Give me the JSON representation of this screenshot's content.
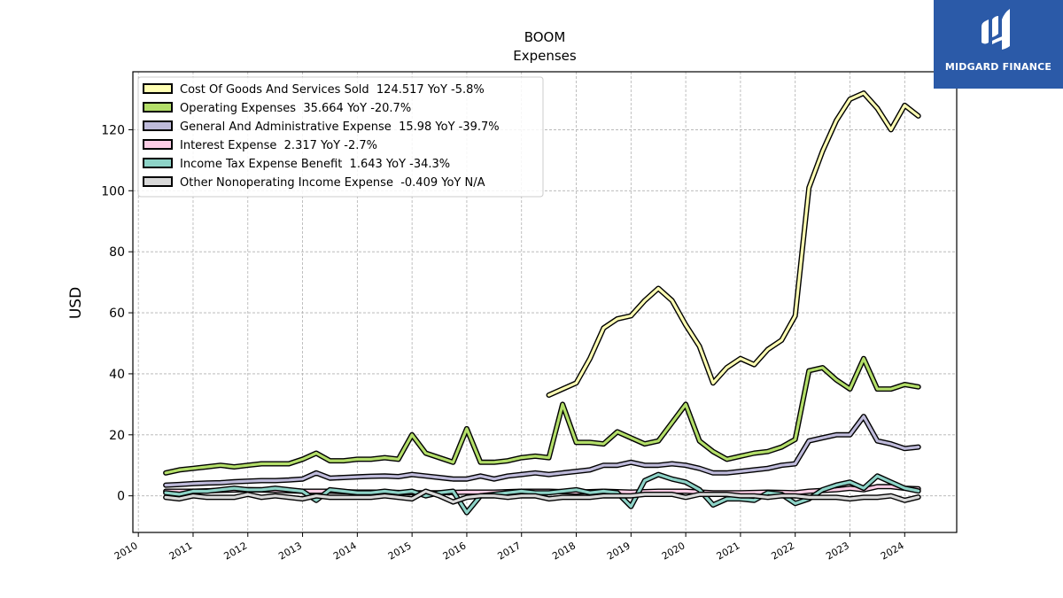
{
  "brand": {
    "name": "MIDGARD FINANCE",
    "bg_color": "#2b5aa8"
  },
  "chart_data": {
    "type": "line",
    "title": "BOOM",
    "subtitle": "Expenses",
    "xlabel": "",
    "ylabel": "USD",
    "xlim": [
      2009.9,
      2024.95
    ],
    "ylim": [
      -12,
      139
    ],
    "yticks": [
      0,
      20,
      40,
      60,
      80,
      100,
      120
    ],
    "xticks": [
      "2010",
      "2011",
      "2012",
      "2013",
      "2014",
      "2015",
      "2016",
      "2017",
      "2018",
      "2019",
      "2020",
      "2021",
      "2022",
      "2023",
      "2024"
    ],
    "grid": true,
    "legend_position": "top-left",
    "series": [
      {
        "name": "Cost Of Goods And Services Sold  124.517 YoY -5.8%",
        "color": "#ffffb3",
        "points": [
          [
            2017.5,
            33
          ],
          [
            2017.75,
            35
          ],
          [
            2018.0,
            37
          ],
          [
            2018.25,
            45
          ],
          [
            2018.5,
            55
          ],
          [
            2018.75,
            58
          ],
          [
            2019.0,
            59
          ],
          [
            2019.25,
            64
          ],
          [
            2019.5,
            68
          ],
          [
            2019.75,
            64
          ],
          [
            2020.0,
            56
          ],
          [
            2020.25,
            49
          ],
          [
            2020.5,
            37
          ],
          [
            2020.75,
            42
          ],
          [
            2021.0,
            45
          ],
          [
            2021.25,
            43
          ],
          [
            2021.5,
            48
          ],
          [
            2021.75,
            51
          ],
          [
            2022.0,
            59
          ],
          [
            2022.25,
            101
          ],
          [
            2022.5,
            113
          ],
          [
            2022.75,
            123
          ],
          [
            2023.0,
            130
          ],
          [
            2023.25,
            132
          ],
          [
            2023.5,
            127
          ],
          [
            2023.75,
            120
          ],
          [
            2024.0,
            128
          ],
          [
            2024.25,
            124.5
          ]
        ]
      },
      {
        "name": "Operating Expenses  35.664 YoY -20.7%",
        "color": "#b3de69",
        "points": [
          [
            2010.5,
            7.5
          ],
          [
            2010.75,
            8.5
          ],
          [
            2011.0,
            9
          ],
          [
            2011.25,
            9.5
          ],
          [
            2011.5,
            10
          ],
          [
            2011.75,
            9.5
          ],
          [
            2012.0,
            10
          ],
          [
            2012.25,
            10.5
          ],
          [
            2012.5,
            10.5
          ],
          [
            2012.75,
            10.5
          ],
          [
            2013.0,
            12
          ],
          [
            2013.25,
            14
          ],
          [
            2013.5,
            11.5
          ],
          [
            2013.75,
            11.5
          ],
          [
            2014.0,
            12
          ],
          [
            2014.25,
            12
          ],
          [
            2014.5,
            12.5
          ],
          [
            2014.75,
            12
          ],
          [
            2015.0,
            20
          ],
          [
            2015.25,
            14
          ],
          [
            2015.5,
            12.5
          ],
          [
            2015.75,
            11
          ],
          [
            2016.0,
            22
          ],
          [
            2016.25,
            11
          ],
          [
            2016.5,
            11
          ],
          [
            2016.75,
            11.5
          ],
          [
            2017.0,
            12.5
          ],
          [
            2017.25,
            13
          ],
          [
            2017.5,
            12.5
          ],
          [
            2017.75,
            30
          ],
          [
            2018.0,
            17.5
          ],
          [
            2018.25,
            17.5
          ],
          [
            2018.5,
            17
          ],
          [
            2018.75,
            21
          ],
          [
            2019.0,
            19
          ],
          [
            2019.25,
            17
          ],
          [
            2019.5,
            18
          ],
          [
            2019.75,
            24
          ],
          [
            2020.0,
            30
          ],
          [
            2020.25,
            18
          ],
          [
            2020.5,
            14.5
          ],
          [
            2020.75,
            12
          ],
          [
            2021.0,
            13
          ],
          [
            2021.25,
            14
          ],
          [
            2021.5,
            14.5
          ],
          [
            2021.75,
            16
          ],
          [
            2022.0,
            18.5
          ],
          [
            2022.25,
            41
          ],
          [
            2022.5,
            42
          ],
          [
            2022.75,
            38
          ],
          [
            2023.0,
            35
          ],
          [
            2023.25,
            45
          ],
          [
            2023.5,
            35
          ],
          [
            2023.75,
            35
          ],
          [
            2024.0,
            36.5
          ],
          [
            2024.25,
            35.7
          ]
        ]
      },
      {
        "name": "General And Administrative Expense  15.98 YoY -39.7%",
        "color": "#bebada",
        "points": [
          [
            2010.5,
            3.5
          ],
          [
            2010.75,
            3.7
          ],
          [
            2011.0,
            4
          ],
          [
            2011.25,
            4.2
          ],
          [
            2011.5,
            4.3
          ],
          [
            2011.75,
            4.6
          ],
          [
            2012.0,
            4.8
          ],
          [
            2012.25,
            5
          ],
          [
            2012.5,
            5
          ],
          [
            2012.75,
            5.2
          ],
          [
            2013.0,
            5.5
          ],
          [
            2013.25,
            7.5
          ],
          [
            2013.5,
            5.8
          ],
          [
            2013.75,
            6
          ],
          [
            2014.0,
            6.2
          ],
          [
            2014.25,
            6.4
          ],
          [
            2014.5,
            6.5
          ],
          [
            2014.75,
            6.3
          ],
          [
            2015.0,
            7
          ],
          [
            2015.25,
            6.5
          ],
          [
            2015.5,
            6
          ],
          [
            2015.75,
            5.5
          ],
          [
            2016.0,
            5.5
          ],
          [
            2016.25,
            6.5
          ],
          [
            2016.5,
            5.5
          ],
          [
            2016.75,
            6.5
          ],
          [
            2017.0,
            7
          ],
          [
            2017.25,
            7.5
          ],
          [
            2017.5,
            7
          ],
          [
            2017.75,
            7.5
          ],
          [
            2018.0,
            8
          ],
          [
            2018.25,
            8.5
          ],
          [
            2018.5,
            10
          ],
          [
            2018.75,
            10
          ],
          [
            2019.0,
            11
          ],
          [
            2019.25,
            10
          ],
          [
            2019.5,
            10
          ],
          [
            2019.75,
            10.5
          ],
          [
            2020.0,
            10
          ],
          [
            2020.25,
            9
          ],
          [
            2020.5,
            7.5
          ],
          [
            2020.75,
            7.5
          ],
          [
            2021.0,
            8
          ],
          [
            2021.25,
            8.5
          ],
          [
            2021.5,
            9
          ],
          [
            2021.75,
            10
          ],
          [
            2022.0,
            10.5
          ],
          [
            2022.25,
            18
          ],
          [
            2022.5,
            19
          ],
          [
            2022.75,
            20
          ],
          [
            2023.0,
            20
          ],
          [
            2023.25,
            26
          ],
          [
            2023.5,
            18
          ],
          [
            2023.75,
            17
          ],
          [
            2024.0,
            15.5
          ],
          [
            2024.25,
            16
          ]
        ]
      },
      {
        "name": "Interest Expense  2.317 YoY -2.7%",
        "color": "#fccde5",
        "points": [
          [
            2010.5,
            1.5
          ],
          [
            2011.0,
            1.5
          ],
          [
            2011.5,
            1.8
          ],
          [
            2012.0,
            2
          ],
          [
            2012.5,
            1.8
          ],
          [
            2013.0,
            1.5
          ],
          [
            2013.5,
            1.5
          ],
          [
            2014.0,
            1.2
          ],
          [
            2014.5,
            1.2
          ],
          [
            2015.0,
            1
          ],
          [
            2015.5,
            1
          ],
          [
            2016.0,
            1.2
          ],
          [
            2016.5,
            1.2
          ],
          [
            2017.0,
            1.5
          ],
          [
            2017.5,
            1.5
          ],
          [
            2018.0,
            1.2
          ],
          [
            2018.5,
            1.5
          ],
          [
            2019.0,
            1.2
          ],
          [
            2019.5,
            1.5
          ],
          [
            2020.0,
            1.5
          ],
          [
            2020.5,
            1
          ],
          [
            2021.0,
            1
          ],
          [
            2021.5,
            1.2
          ],
          [
            2022.0,
            1
          ],
          [
            2022.25,
            1.5
          ],
          [
            2022.75,
            2
          ],
          [
            2023.0,
            2.5
          ],
          [
            2023.25,
            2
          ],
          [
            2023.5,
            3
          ],
          [
            2023.75,
            3
          ],
          [
            2024.0,
            2.5
          ],
          [
            2024.25,
            2.3
          ]
        ]
      },
      {
        "name": "Income Tax Expense Benefit  1.643 YoY -34.3%",
        "color": "#8dd3c7",
        "points": [
          [
            2010.5,
            1
          ],
          [
            2010.75,
            0.5
          ],
          [
            2011.0,
            1.5
          ],
          [
            2011.25,
            1.5
          ],
          [
            2011.5,
            2
          ],
          [
            2011.75,
            2.5
          ],
          [
            2012.0,
            2
          ],
          [
            2012.25,
            2
          ],
          [
            2012.5,
            2.5
          ],
          [
            2012.75,
            2
          ],
          [
            2013.0,
            1.5
          ],
          [
            2013.25,
            -1.5
          ],
          [
            2013.5,
            2
          ],
          [
            2013.75,
            1.5
          ],
          [
            2014.0,
            1
          ],
          [
            2014.25,
            1
          ],
          [
            2014.5,
            1.5
          ],
          [
            2014.75,
            1
          ],
          [
            2015.0,
            1.5
          ],
          [
            2015.25,
            0
          ],
          [
            2015.5,
            1
          ],
          [
            2015.75,
            1.5
          ],
          [
            2016.0,
            -5.5
          ],
          [
            2016.25,
            0
          ],
          [
            2016.5,
            0.5
          ],
          [
            2016.75,
            1
          ],
          [
            2017.0,
            1.5
          ],
          [
            2017.25,
            1
          ],
          [
            2017.5,
            1
          ],
          [
            2017.75,
            1.5
          ],
          [
            2018.0,
            2
          ],
          [
            2018.25,
            1
          ],
          [
            2018.5,
            1.5
          ],
          [
            2018.75,
            1
          ],
          [
            2019.0,
            -3.5
          ],
          [
            2019.25,
            5
          ],
          [
            2019.5,
            7
          ],
          [
            2019.75,
            5.5
          ],
          [
            2020.0,
            4.5
          ],
          [
            2020.25,
            2
          ],
          [
            2020.5,
            -3
          ],
          [
            2020.75,
            -1
          ],
          [
            2021.0,
            -1
          ],
          [
            2021.25,
            -1.5
          ],
          [
            2021.5,
            1
          ],
          [
            2021.75,
            0.5
          ],
          [
            2022.0,
            -2.5
          ],
          [
            2022.25,
            -1
          ],
          [
            2022.5,
            2
          ],
          [
            2022.75,
            3.5
          ],
          [
            2023.0,
            4.5
          ],
          [
            2023.25,
            2.5
          ],
          [
            2023.5,
            6.5
          ],
          [
            2023.75,
            4.5
          ],
          [
            2024.0,
            2.5
          ],
          [
            2024.25,
            1.6
          ]
        ]
      },
      {
        "name": "Other Nonoperating Income Expense  -0.409 YoY N/A",
        "color": "#d9d9d9",
        "points": [
          [
            2010.5,
            -0.5
          ],
          [
            2010.75,
            -1
          ],
          [
            2011.0,
            0
          ],
          [
            2011.25,
            -0.5
          ],
          [
            2011.5,
            -0.5
          ],
          [
            2011.75,
            -0.5
          ],
          [
            2012.0,
            0.5
          ],
          [
            2012.25,
            -0.5
          ],
          [
            2012.5,
            0
          ],
          [
            2012.75,
            -0.5
          ],
          [
            2013.0,
            -1
          ],
          [
            2013.25,
            0
          ],
          [
            2013.5,
            -0.5
          ],
          [
            2013.75,
            -0.5
          ],
          [
            2014.0,
            -0.5
          ],
          [
            2014.25,
            -0.5
          ],
          [
            2014.5,
            0
          ],
          [
            2014.75,
            -0.5
          ],
          [
            2015.0,
            -1
          ],
          [
            2015.25,
            1.5
          ],
          [
            2015.5,
            0
          ],
          [
            2015.75,
            -2
          ],
          [
            2016.0,
            -0.5
          ],
          [
            2016.25,
            0
          ],
          [
            2016.5,
            0
          ],
          [
            2016.75,
            -0.5
          ],
          [
            2017.0,
            0
          ],
          [
            2017.25,
            0
          ],
          [
            2017.5,
            -1
          ],
          [
            2017.75,
            -0.5
          ],
          [
            2018.0,
            -0.5
          ],
          [
            2018.25,
            -0.5
          ],
          [
            2018.5,
            0
          ],
          [
            2018.75,
            0
          ],
          [
            2019.0,
            0
          ],
          [
            2019.25,
            0.5
          ],
          [
            2019.5,
            0.5
          ],
          [
            2019.75,
            0.5
          ],
          [
            2020.0,
            -0.5
          ],
          [
            2020.25,
            0.5
          ],
          [
            2020.5,
            0.5
          ],
          [
            2020.75,
            0.5
          ],
          [
            2021.0,
            0
          ],
          [
            2021.25,
            0
          ],
          [
            2021.5,
            -0.5
          ],
          [
            2021.75,
            0
          ],
          [
            2022.0,
            0
          ],
          [
            2022.25,
            -0.5
          ],
          [
            2022.5,
            -0.5
          ],
          [
            2022.75,
            -0.5
          ],
          [
            2023.0,
            -1
          ],
          [
            2023.25,
            -0.5
          ],
          [
            2023.5,
            -0.5
          ],
          [
            2023.75,
            0
          ],
          [
            2024.0,
            -1.5
          ],
          [
            2024.25,
            -0.4
          ]
        ]
      }
    ]
  }
}
